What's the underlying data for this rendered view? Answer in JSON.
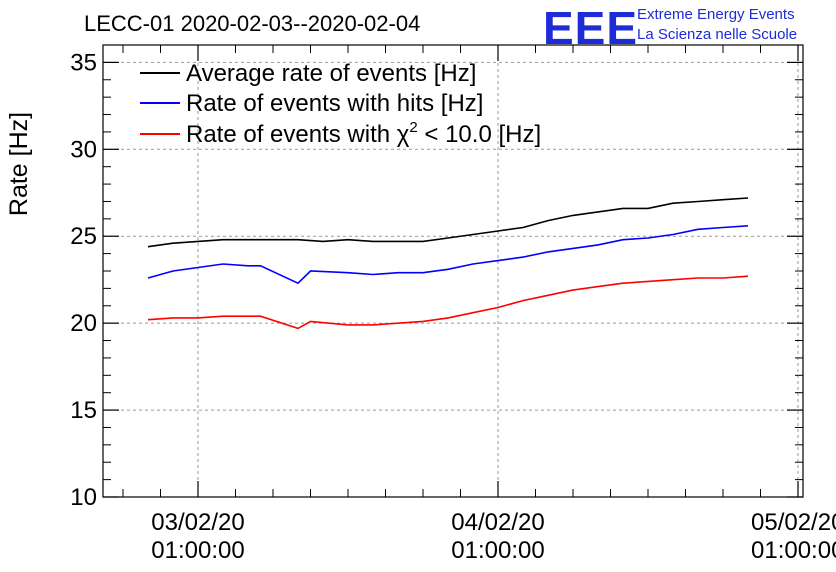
{
  "chart_data": {
    "type": "line",
    "title": "LECC-01 2020-02-03--2020-02-04",
    "ylabel": "Rate [Hz]",
    "xlabel": "",
    "ylim": [
      10,
      36
    ],
    "yticks": [
      "10",
      "15",
      "20",
      "25",
      "30",
      "35"
    ],
    "xlim": [
      "2020-02-02 18:30",
      "2020-02-05 01:00"
    ],
    "xticks": [
      {
        "date": "03/02/20",
        "time": "01:00:00"
      },
      {
        "date": "04/02/20",
        "time": "01:00:00"
      },
      {
        "date": "05/02/20",
        "time": "01:00:00"
      }
    ],
    "grid": true,
    "legend_position": "top-left",
    "series": [
      {
        "name": "Average rate of events [Hz]",
        "color": "#000000",
        "x": [
          "02-02 21:00",
          "02-02 23:00",
          "02-03 01:00",
          "02-03 03:00",
          "02-03 05:00",
          "02-03 07:00",
          "02-03 09:00",
          "02-03 11:00",
          "02-03 13:00",
          "02-03 15:00",
          "02-03 17:00",
          "02-03 19:00",
          "02-03 21:00",
          "02-03 23:00",
          "02-04 01:00",
          "02-04 03:00",
          "02-04 05:00",
          "02-04 07:00",
          "02-04 09:00",
          "02-04 11:00",
          "02-04 13:00",
          "02-04 15:00",
          "02-04 17:00",
          "02-04 19:00",
          "02-04 21:00"
        ],
        "values": [
          24.4,
          24.6,
          24.7,
          24.8,
          24.8,
          24.8,
          24.8,
          24.7,
          24.8,
          24.7,
          24.7,
          24.7,
          24.9,
          25.1,
          25.3,
          25.5,
          25.9,
          26.2,
          26.4,
          26.6,
          26.6,
          26.9,
          27.0,
          27.1,
          27.2
        ]
      },
      {
        "name": "Rate of events with hits [Hz]",
        "color": "#0000ff",
        "x": [
          "02-02 21:00",
          "02-02 23:00",
          "02-03 01:00",
          "02-03 03:00",
          "02-03 05:00",
          "02-03 06:00",
          "02-03 09:00",
          "02-03 10:00",
          "02-03 13:00",
          "02-03 15:00",
          "02-03 17:00",
          "02-03 19:00",
          "02-03 21:00",
          "02-03 23:00",
          "02-04 01:00",
          "02-04 03:00",
          "02-04 05:00",
          "02-04 07:00",
          "02-04 09:00",
          "02-04 11:00",
          "02-04 13:00",
          "02-04 15:00",
          "02-04 17:00",
          "02-04 19:00",
          "02-04 21:00"
        ],
        "values": [
          22.6,
          23.0,
          23.2,
          23.4,
          23.3,
          23.3,
          22.3,
          23.0,
          22.9,
          22.8,
          22.9,
          22.9,
          23.1,
          23.4,
          23.6,
          23.8,
          24.1,
          24.3,
          24.5,
          24.8,
          24.9,
          25.1,
          25.4,
          25.5,
          25.6
        ]
      },
      {
        "name": "Rate of events with χ² < 10.0 [Hz]",
        "color": "#ff0000",
        "x": [
          "02-02 21:00",
          "02-02 23:00",
          "02-03 01:00",
          "02-03 03:00",
          "02-03 05:00",
          "02-03 06:00",
          "02-03 09:00",
          "02-03 10:00",
          "02-03 13:00",
          "02-03 15:00",
          "02-03 17:00",
          "02-03 19:00",
          "02-03 21:00",
          "02-03 23:00",
          "02-04 01:00",
          "02-04 03:00",
          "02-04 05:00",
          "02-04 07:00",
          "02-04 09:00",
          "02-04 11:00",
          "02-04 13:00",
          "02-04 15:00",
          "02-04 17:00",
          "02-04 19:00",
          "02-04 21:00"
        ],
        "values": [
          20.2,
          20.3,
          20.3,
          20.4,
          20.4,
          20.4,
          19.7,
          20.1,
          19.9,
          19.9,
          20.0,
          20.1,
          20.3,
          20.6,
          20.9,
          21.3,
          21.6,
          21.9,
          22.1,
          22.3,
          22.4,
          22.5,
          22.6,
          22.6,
          22.7
        ]
      }
    ]
  },
  "legend": {
    "avg": "Average rate of events [Hz]",
    "hits": "Rate of events with hits [Hz]",
    "chi_prefix": "Rate of events with ",
    "chi_symbol": "χ",
    "chi_exp": "2",
    "chi_suffix": " < 10.0 [Hz]"
  },
  "logo": {
    "text": "EEE",
    "line1": "Extreme Energy Events",
    "line2": "La Scienza nelle Scuole",
    "color": "#1f2bd6"
  }
}
